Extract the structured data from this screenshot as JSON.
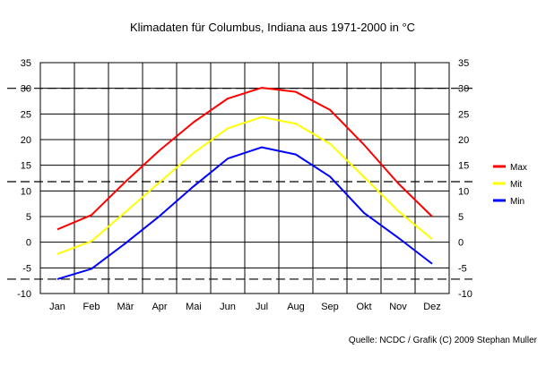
{
  "chart_data": {
    "type": "line",
    "title": "Klimadaten für Columbus, Indiana aus 1971-2000 in °C",
    "categories": [
      "Jan",
      "Feb",
      "Mär",
      "Apr",
      "Mai",
      "Jun",
      "Jul",
      "Aug",
      "Sep",
      "Okt",
      "Nov",
      "Dez"
    ],
    "ylim": [
      -10,
      35
    ],
    "yticks": [
      -10,
      -5,
      0,
      5,
      10,
      15,
      20,
      25,
      30,
      35
    ],
    "xlabel": "",
    "ylabel": "",
    "grid": true,
    "series": [
      {
        "name": "Max",
        "color": "#ff0000",
        "values": [
          2.5,
          5.3,
          11.8,
          17.9,
          23.4,
          28.0,
          30.1,
          29.3,
          25.8,
          19.0,
          11.5,
          5.0
        ]
      },
      {
        "name": "Mit",
        "color": "#ffff00",
        "values": [
          -2.3,
          0.2,
          5.9,
          11.7,
          17.4,
          22.2,
          24.4,
          23.1,
          19.2,
          12.7,
          6.1,
          0.6
        ]
      },
      {
        "name": "Min",
        "color": "#0000ff",
        "values": [
          -7.2,
          -5.2,
          -0.2,
          5.1,
          10.9,
          16.3,
          18.5,
          17.1,
          12.8,
          5.7,
          0.9,
          -4.2
        ]
      }
    ],
    "reference_lines": [
      30.0,
      11.8,
      -7.2
    ],
    "source": "Quelle: NCDC / Grafik (C) 2009 Stephan Muller",
    "legend_position": "right"
  }
}
